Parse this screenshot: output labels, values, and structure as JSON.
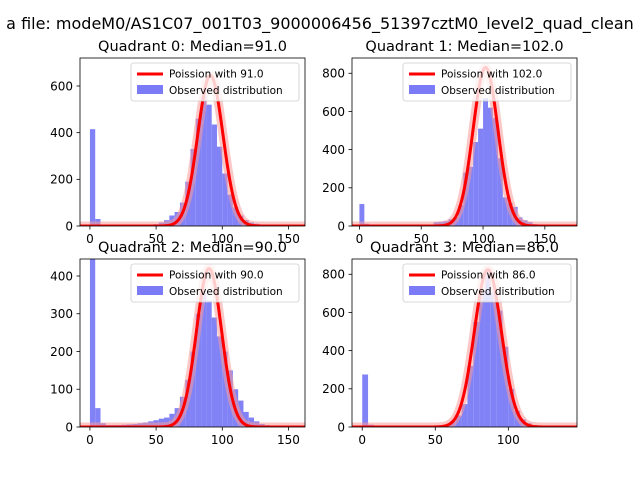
{
  "figure": {
    "suptitle": "a file: modeM0/AS1C07_001T03_9000006456_51397cztM0_level2_quad_clean"
  },
  "colors": {
    "histogram": "#7b7bf7",
    "poisson": "#ff0000",
    "poisson_halo": "#f79b9b"
  },
  "chart_data": [
    {
      "type": "bar",
      "title": "Quadrant 0: Median=91.0",
      "median": 91.0,
      "xlim": [
        -7.5,
        162.5
      ],
      "ylim": [
        0,
        720
      ],
      "xticks": [
        0,
        50,
        100,
        150
      ],
      "yticks": [
        0,
        200,
        400,
        600
      ],
      "bin_width": 4,
      "legend": {
        "placement": "top-right",
        "entries": [
          "Poission with 91.0",
          "Observed distribution"
        ]
      },
      "bins": [
        0,
        4,
        8,
        12,
        16,
        20,
        24,
        28,
        32,
        36,
        40,
        44,
        48,
        52,
        56,
        60,
        64,
        68,
        72,
        76,
        80,
        84,
        88,
        92,
        96,
        100,
        104,
        108,
        112,
        116,
        120,
        124,
        128,
        132,
        136,
        140,
        144,
        148,
        152
      ],
      "counts": [
        415,
        30,
        3,
        2,
        2,
        2,
        2,
        3,
        3,
        3,
        4,
        5,
        8,
        15,
        25,
        45,
        60,
        100,
        190,
        330,
        460,
        555,
        520,
        435,
        340,
        225,
        135,
        80,
        45,
        25,
        15,
        10,
        5,
        3,
        2,
        1,
        1,
        1,
        1
      ],
      "poisson_lambda": 91.0,
      "poisson_peak": 645
    },
    {
      "type": "bar",
      "title": "Quadrant 1: Median=102.0",
      "median": 102.0,
      "xlim": [
        -6,
        176
      ],
      "ylim": [
        0,
        880
      ],
      "xticks": [
        0,
        50,
        100,
        150
      ],
      "yticks": [
        0,
        200,
        400,
        600,
        800
      ],
      "bin_width": 4,
      "legend": {
        "placement": "top-right",
        "entries": [
          "Poission with 102.0",
          "Observed distribution"
        ]
      },
      "bins": [
        0,
        4,
        8,
        12,
        16,
        20,
        24,
        28,
        32,
        36,
        40,
        44,
        48,
        52,
        56,
        60,
        64,
        68,
        72,
        76,
        80,
        84,
        88,
        92,
        96,
        100,
        104,
        108,
        112,
        116,
        120,
        124,
        128,
        132,
        136,
        140,
        144,
        148,
        152,
        156,
        160,
        164
      ],
      "counts": [
        115,
        12,
        3,
        2,
        2,
        2,
        2,
        2,
        2,
        3,
        3,
        4,
        5,
        6,
        8,
        20,
        22,
        25,
        35,
        45,
        110,
        280,
        310,
        440,
        510,
        670,
        620,
        565,
        355,
        150,
        120,
        100,
        45,
        30,
        20,
        10,
        8,
        5,
        3,
        2,
        1,
        1
      ],
      "poisson_lambda": 102.0,
      "poisson_peak": 830
    },
    {
      "type": "bar",
      "title": "Quadrant 2: Median=90.0",
      "median": 90.0,
      "xlim": [
        -7.5,
        162.5
      ],
      "ylim": [
        0,
        445
      ],
      "xticks": [
        0,
        50,
        100,
        150
      ],
      "yticks": [
        0,
        100,
        200,
        300,
        400
      ],
      "bin_width": 4,
      "legend": {
        "placement": "top-right",
        "entries": [
          "Poission with 90.0",
          "Observed distribution"
        ]
      },
      "bins": [
        0,
        4,
        8,
        12,
        16,
        20,
        24,
        28,
        32,
        36,
        40,
        44,
        48,
        52,
        56,
        60,
        64,
        68,
        72,
        76,
        80,
        84,
        88,
        92,
        96,
        100,
        104,
        108,
        112,
        116,
        120,
        124,
        128,
        132,
        136,
        140,
        144,
        148,
        152
      ],
      "counts": [
        445,
        50,
        10,
        5,
        5,
        5,
        6,
        7,
        8,
        10,
        12,
        15,
        18,
        22,
        25,
        35,
        50,
        80,
        125,
        200,
        300,
        355,
        335,
        290,
        240,
        200,
        150,
        100,
        70,
        40,
        25,
        15,
        8,
        5,
        3,
        2,
        1,
        1,
        1
      ],
      "poisson_lambda": 90.0,
      "poisson_peak": 420
    },
    {
      "type": "bar",
      "title": "Quadrant 3: Median=86.0",
      "median": 86.0,
      "xlim": [
        -7,
        147
      ],
      "ylim": [
        0,
        880
      ],
      "xticks": [
        0,
        50,
        100
      ],
      "yticks": [
        0,
        200,
        400,
        600,
        800
      ],
      "bin_width": 4,
      "legend": {
        "placement": "top-right",
        "entries": [
          "Poission with 86.0",
          "Observed distribution"
        ]
      },
      "bins": [
        0,
        4,
        8,
        12,
        16,
        20,
        24,
        28,
        32,
        36,
        40,
        44,
        48,
        52,
        56,
        60,
        64,
        68,
        72,
        76,
        80,
        84,
        88,
        92,
        96,
        100,
        104,
        108,
        112,
        116,
        120,
        124,
        128,
        132,
        136,
        140
      ],
      "counts": [
        275,
        12,
        3,
        2,
        2,
        2,
        2,
        2,
        2,
        3,
        3,
        4,
        5,
        8,
        12,
        30,
        60,
        120,
        320,
        550,
        720,
        800,
        705,
        610,
        420,
        200,
        85,
        40,
        20,
        10,
        5,
        3,
        2,
        1,
        1,
        1
      ],
      "poisson_lambda": 86.0,
      "poisson_peak": 825
    }
  ]
}
